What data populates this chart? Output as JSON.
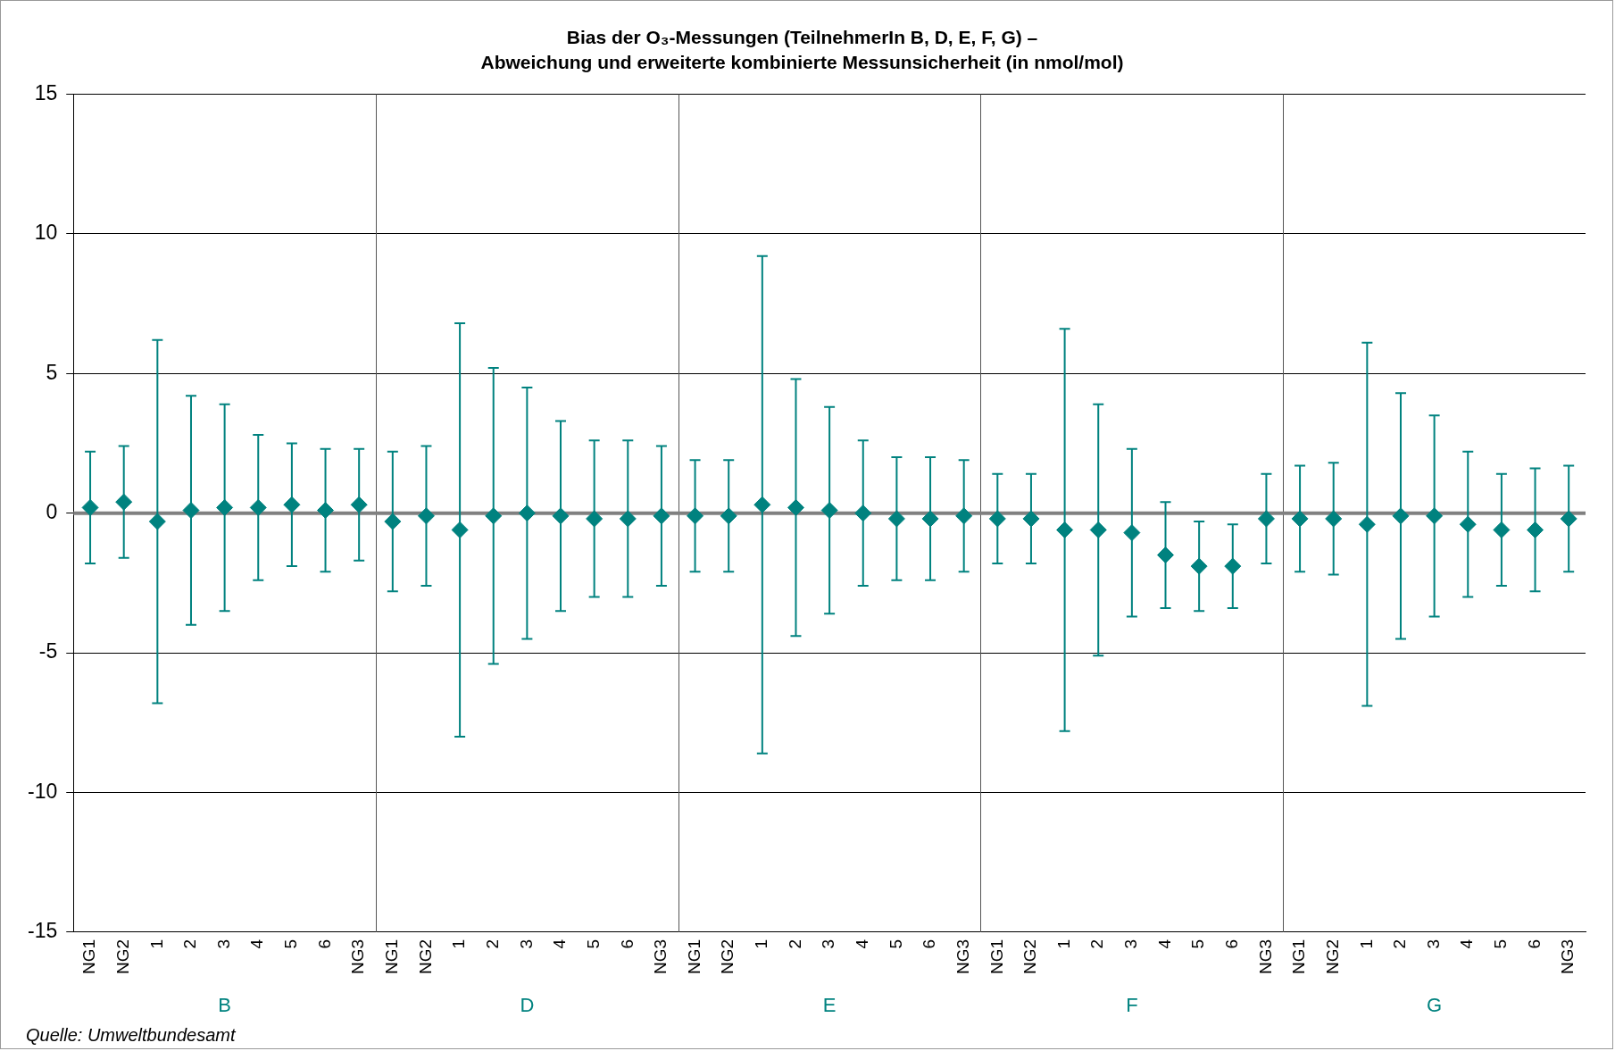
{
  "chart_data": {
    "type": "scatter",
    "title": "Bias der O₃-Messungen (TeilnehmerIn B, D, E, F, G) –",
    "subtitle": "Abweichung und erweiterte kombinierte Messunsicherheit (in nmol/mol)",
    "categories": [
      "NG1",
      "NG2",
      "1",
      "2",
      "3",
      "4",
      "5",
      "6",
      "NG3",
      "NG1",
      "NG2",
      "1",
      "2",
      "3",
      "4",
      "5",
      "6",
      "NG3",
      "NG1",
      "NG2",
      "1",
      "2",
      "3",
      "4",
      "5",
      "6",
      "NG3",
      "NG1",
      "NG2",
      "1",
      "2",
      "3",
      "4",
      "5",
      "6",
      "NG3",
      "NG1",
      "NG2",
      "1",
      "2",
      "3",
      "4",
      "5",
      "6",
      "NG3"
    ],
    "series": [
      {
        "color": "#00827f",
        "marker": "diamond",
        "values": [
          0.2,
          0.4,
          -0.3,
          0.1,
          0.2,
          0.2,
          0.3,
          0.1,
          0.3,
          -0.3,
          -0.1,
          -0.6,
          -0.1,
          0.0,
          -0.1,
          -0.2,
          -0.2,
          -0.1,
          -0.1,
          -0.1,
          0.3,
          0.2,
          0.1,
          0.0,
          -0.2,
          -0.2,
          -0.1,
          -0.2,
          -0.2,
          -0.6,
          -0.6,
          -0.7,
          -1.5,
          -1.9,
          -1.9,
          -0.2,
          -0.2,
          -0.2,
          -0.4,
          -0.1,
          -0.1,
          -0.4,
          -0.6,
          -0.6,
          -0.2
        ],
        "errors": [
          2.0,
          2.0,
          6.5,
          4.1,
          3.7,
          2.6,
          2.2,
          2.2,
          2.0,
          2.5,
          2.5,
          7.4,
          5.3,
          4.5,
          3.4,
          2.8,
          2.8,
          2.5,
          2.0,
          2.0,
          8.9,
          4.6,
          3.7,
          2.6,
          2.2,
          2.2,
          2.0,
          1.6,
          1.6,
          7.2,
          4.5,
          3.0,
          1.9,
          1.6,
          1.5,
          1.6,
          1.9,
          2.0,
          6.5,
          4.4,
          3.6,
          2.6,
          2.0,
          2.2,
          1.9
        ]
      }
    ],
    "ylim": [
      -15,
      15
    ],
    "yticks": [
      -15,
      -10,
      -5,
      0,
      5,
      10,
      15
    ],
    "grid": "y",
    "legend": false,
    "ref_lines": [
      {
        "axis": "y",
        "value": 0,
        "color": "#808080"
      }
    ],
    "annotations": [
      "B",
      "D",
      "E",
      "F",
      "G",
      "Quelle: Umweltbundesamt"
    ]
  }
}
